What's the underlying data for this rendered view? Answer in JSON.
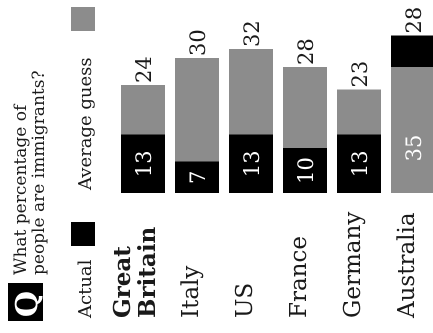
{
  "chart_data": {
    "type": "bar",
    "question": "What percentage of people are immigrants?",
    "question_icon_letter": "Q",
    "categories": [
      "Great Britain",
      "Italy",
      "US",
      "France",
      "Germany",
      "Australia"
    ],
    "emphasized_category": "Great Britain",
    "series": [
      {
        "name": "Actual",
        "values": [
          13,
          7,
          13,
          10,
          13,
          35
        ]
      },
      {
        "name": "Average guess",
        "values": [
          24,
          30,
          32,
          28,
          23,
          28
        ]
      }
    ],
    "ylim": [
      0,
      36
    ],
    "colors": {
      "Actual": "#000000",
      "Average guess": "#8c8c8c"
    },
    "legend_placement": "left",
    "orientation": "rotated 90 degrees counter-clockwise"
  }
}
